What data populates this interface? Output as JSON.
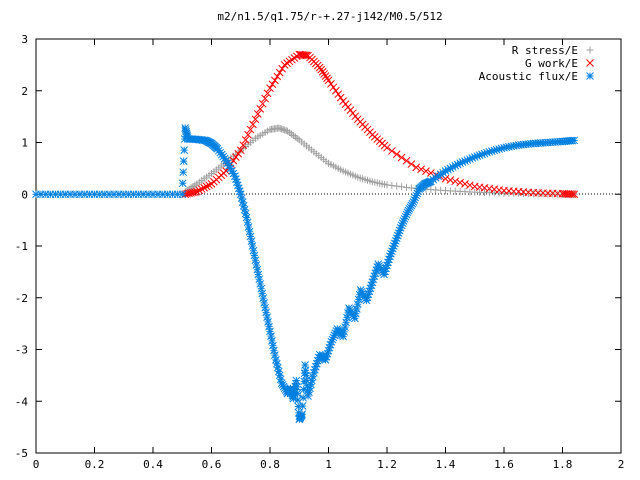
{
  "chart_data": {
    "type": "scatter",
    "title": "m2/n1.5/q1.75/r-+.27-j142/M0.5/512",
    "xlabel": "",
    "ylabel": "",
    "xlim": [
      0,
      2
    ],
    "ylim": [
      -5,
      3
    ],
    "x_ticks": [
      0,
      0.2,
      0.4,
      0.6,
      0.8,
      1,
      1.2,
      1.4,
      1.6,
      1.8,
      2
    ],
    "x_tick_labels": [
      "0",
      "0.2",
      "0.4",
      "0.6",
      "0.8",
      "1",
      "1.2",
      "1.4",
      "1.6",
      "1.8",
      "2"
    ],
    "y_ticks": [
      -5,
      -4,
      -3,
      -2,
      -1,
      0,
      1,
      2,
      3
    ],
    "y_tick_labels": [
      "-5",
      "-4",
      "-3",
      "-2",
      "-1",
      "0",
      "1",
      "2",
      "3"
    ],
    "grid": false,
    "legend_position": "top-right",
    "series": [
      {
        "name": "R stress/E",
        "marker": "plus",
        "color": "#a0a0a0",
        "x": [
          0.51,
          0.55,
          0.6,
          0.65,
          0.7,
          0.75,
          0.8,
          0.83,
          0.86,
          0.9,
          0.95,
          1.0,
          1.05,
          1.1,
          1.15,
          1.2,
          1.3,
          1.4,
          1.5,
          1.6,
          1.7,
          1.8,
          1.84
        ],
        "y": [
          0.05,
          0.2,
          0.4,
          0.62,
          0.85,
          1.08,
          1.25,
          1.28,
          1.22,
          1.05,
          0.82,
          0.6,
          0.45,
          0.33,
          0.24,
          0.18,
          0.11,
          0.07,
          0.04,
          0.02,
          0.01,
          0.0,
          0.0
        ]
      },
      {
        "name": "G work/E",
        "marker": "cross",
        "color": "#ff0000",
        "x": [
          0.51,
          0.55,
          0.6,
          0.65,
          0.7,
          0.75,
          0.8,
          0.85,
          0.9,
          0.93,
          0.97,
          1.0,
          1.05,
          1.1,
          1.15,
          1.2,
          1.3,
          1.4,
          1.5,
          1.6,
          1.7,
          1.8,
          1.84
        ],
        "y": [
          0.0,
          0.05,
          0.2,
          0.45,
          0.85,
          1.45,
          2.05,
          2.5,
          2.7,
          2.68,
          2.45,
          2.2,
          1.8,
          1.45,
          1.15,
          0.9,
          0.52,
          0.3,
          0.15,
          0.07,
          0.03,
          0.01,
          0.0
        ]
      },
      {
        "name": "Acoustic flux/E",
        "marker": "star",
        "color": "#0080e0",
        "x": [
          0.0,
          0.1,
          0.2,
          0.3,
          0.4,
          0.5,
          0.51,
          0.52,
          0.55,
          0.58,
          0.6,
          0.62,
          0.65,
          0.68,
          0.7,
          0.72,
          0.74,
          0.76,
          0.78,
          0.8,
          0.82,
          0.84,
          0.86,
          0.87,
          0.88,
          0.89,
          0.9,
          0.91,
          0.92,
          0.93,
          0.95,
          0.97,
          0.99,
          1.01,
          1.03,
          1.05,
          1.07,
          1.09,
          1.11,
          1.13,
          1.15,
          1.17,
          1.19,
          1.21,
          1.23,
          1.25,
          1.27,
          1.29,
          1.31,
          1.33,
          1.35,
          1.4,
          1.45,
          1.5,
          1.55,
          1.6,
          1.65,
          1.7,
          1.75,
          1.8,
          1.84
        ],
        "y": [
          0.0,
          0.0,
          0.0,
          0.0,
          0.0,
          0.0,
          1.28,
          1.07,
          1.06,
          1.04,
          0.98,
          0.88,
          0.65,
          0.35,
          0.0,
          -0.45,
          -1.0,
          -1.55,
          -2.1,
          -2.65,
          -3.2,
          -3.65,
          -3.85,
          -3.75,
          -3.95,
          -3.6,
          -4.35,
          -4.25,
          -3.3,
          -3.9,
          -3.45,
          -3.1,
          -3.2,
          -2.85,
          -2.6,
          -2.75,
          -2.2,
          -2.4,
          -1.85,
          -2.05,
          -1.7,
          -1.35,
          -1.55,
          -1.2,
          -0.9,
          -0.6,
          -0.35,
          -0.15,
          0.1,
          0.2,
          0.25,
          0.45,
          0.6,
          0.72,
          0.82,
          0.9,
          0.95,
          0.98,
          1.0,
          1.02,
          1.04
        ]
      }
    ]
  }
}
